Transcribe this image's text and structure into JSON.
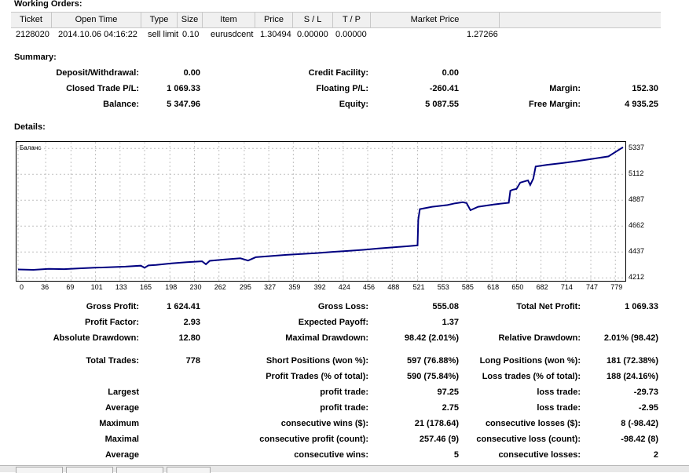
{
  "working_orders": {
    "title": "Working Orders:",
    "columns": [
      "Ticket",
      "Open Time",
      "Type",
      "Size",
      "Item",
      "Price",
      "S / L",
      "T / P",
      "Market Price"
    ],
    "rows": [
      {
        "ticket": "2128020",
        "open_time": "2014.10.06 04:16:22",
        "type": "sell limit",
        "size": "0.10",
        "item": "eurusdcent",
        "price": "1.30494",
        "sl": "0.00000",
        "tp": "0.00000",
        "market_price": "1.27266"
      }
    ]
  },
  "summary": {
    "title": "Summary:",
    "deposit_withdrawal": {
      "label": "Deposit/Withdrawal:",
      "value": "0.00"
    },
    "credit_facility": {
      "label": "Credit Facility:",
      "value": "0.00"
    },
    "closed_trade_pl": {
      "label": "Closed Trade P/L:",
      "value": "1 069.33"
    },
    "floating_pl": {
      "label": "Floating P/L:",
      "value": "-260.41"
    },
    "margin": {
      "label": "Margin:",
      "value": "152.30"
    },
    "balance": {
      "label": "Balance:",
      "value": "5 347.96"
    },
    "equity": {
      "label": "Equity:",
      "value": "5 087.55"
    },
    "free_margin": {
      "label": "Free Margin:",
      "value": "4 935.25"
    }
  },
  "details": {
    "title": "Details:",
    "rows": [
      [
        {
          "l": "Gross Profit:",
          "v": "1 624.41"
        },
        {
          "l": "Gross Loss:",
          "v": "555.08"
        },
        {
          "l": "Total Net Profit:",
          "v": "1 069.33"
        }
      ],
      [
        {
          "l": "Profit Factor:",
          "v": "2.93"
        },
        {
          "l": "Expected Payoff:",
          "v": "1.37"
        },
        {
          "l": "",
          "v": ""
        }
      ],
      [
        {
          "l": "Absolute Drawdown:",
          "v": "12.80"
        },
        {
          "l": "Maximal Drawdown:",
          "v": "98.42 (2.01%)"
        },
        {
          "l": "Relative Drawdown:",
          "v": "2.01% (98.42)"
        }
      ],
      [
        {
          "l": "Total Trades:",
          "v": "778"
        },
        {
          "l": "Short Positions (won %):",
          "v": "597 (76.88%)"
        },
        {
          "l": "Long Positions (won %):",
          "v": "181 (72.38%)"
        }
      ],
      [
        {
          "l": "",
          "v": ""
        },
        {
          "l": "Profit Trades (% of total):",
          "v": "590 (75.84%)"
        },
        {
          "l": "Loss trades (% of total):",
          "v": "188 (24.16%)"
        }
      ],
      [
        {
          "l": "Largest",
          "v": ""
        },
        {
          "l": "profit trade:",
          "v": "97.25"
        },
        {
          "l": "loss trade:",
          "v": "-29.73"
        }
      ],
      [
        {
          "l": "Average",
          "v": ""
        },
        {
          "l": "profit trade:",
          "v": "2.75"
        },
        {
          "l": "loss trade:",
          "v": "-2.95"
        }
      ],
      [
        {
          "l": "Maximum",
          "v": ""
        },
        {
          "l": "consecutive wins ($):",
          "v": "21 (178.64)"
        },
        {
          "l": "consecutive losses ($):",
          "v": "8 (-98.42)"
        }
      ],
      [
        {
          "l": "Maximal",
          "v": ""
        },
        {
          "l": "consecutive profit (count):",
          "v": "257.46 (9)"
        },
        {
          "l": "consecutive loss (count):",
          "v": "-98.42 (8)"
        }
      ],
      [
        {
          "l": "Average",
          "v": ""
        },
        {
          "l": "consecutive wins:",
          "v": "5"
        },
        {
          "l": "consecutive losses:",
          "v": "2"
        }
      ]
    ]
  },
  "chart_data": {
    "type": "line",
    "title": "Баланс",
    "x_ticks": [
      0,
      36,
      69,
      101,
      133,
      165,
      198,
      230,
      262,
      295,
      327,
      359,
      392,
      424,
      456,
      488,
      521,
      553,
      585,
      618,
      650,
      682,
      714,
      747,
      779
    ],
    "y_ticks": [
      4212,
      4437,
      4662,
      4887,
      5112,
      5337
    ],
    "xlim": [
      0,
      790
    ],
    "ylim": [
      4200,
      5380
    ],
    "series": [
      {
        "name": "Баланс",
        "color": "#000080",
        "x": [
          0,
          20,
          40,
          60,
          80,
          100,
          120,
          140,
          160,
          165,
          170,
          180,
          200,
          220,
          240,
          245,
          250,
          270,
          290,
          300,
          310,
          330,
          350,
          370,
          390,
          410,
          430,
          450,
          470,
          490,
          510,
          521,
          522,
          524,
          540,
          560,
          570,
          580,
          585,
          590,
          600,
          620,
          640,
          642,
          645,
          650,
          655,
          665,
          668,
          672,
          675,
          690,
          710,
          730,
          750,
          770,
          789
        ],
        "y": [
          4285,
          4282,
          4290,
          4288,
          4295,
          4300,
          4305,
          4310,
          4318,
          4300,
          4320,
          4325,
          4338,
          4348,
          4356,
          4330,
          4360,
          4372,
          4382,
          4362,
          4392,
          4402,
          4412,
          4420,
          4428,
          4438,
          4446,
          4456,
          4468,
          4478,
          4488,
          4495,
          4720,
          4810,
          4830,
          4845,
          4860,
          4870,
          4862,
          4800,
          4830,
          4850,
          4865,
          4970,
          4978,
          4985,
          5040,
          5060,
          5020,
          5075,
          5180,
          5195,
          5210,
          5228,
          5248,
          5268,
          5348
        ]
      }
    ]
  },
  "colors": {
    "line": "#000080",
    "grid": "#c0c0c0",
    "header_bg": "#f0f0f0"
  }
}
